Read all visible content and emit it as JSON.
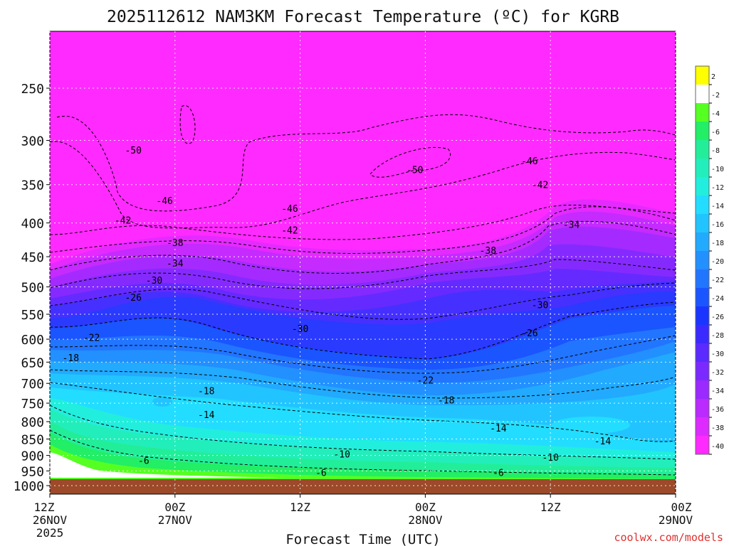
{
  "chart_data": {
    "type": "heatmap",
    "title": "2025112612 NAM3KM Forecast Temperature (ºC) for KGRB",
    "xlabel": "Forecast Time (UTC)",
    "ylabel": "",
    "credit": "coolwx.com/models",
    "y_scale": "log-pressure (inverted)",
    "ylim": [
      1030,
      205
    ],
    "y_ticks": [
      250,
      300,
      350,
      400,
      450,
      500,
      550,
      600,
      650,
      700,
      750,
      800,
      850,
      900,
      950,
      1000
    ],
    "x_hours": [
      0,
      12,
      24,
      36,
      48,
      60
    ],
    "x_ticks": [
      {
        "hour": 0,
        "line1": "12Z",
        "line2": "26NOV",
        "line3": "2025"
      },
      {
        "hour": 12,
        "line1": "00Z",
        "line2": "27NOV",
        "line3": ""
      },
      {
        "hour": 24,
        "line1": "12Z",
        "line2": "",
        "line3": ""
      },
      {
        "hour": 36,
        "line1": "00Z",
        "line2": "28NOV",
        "line3": ""
      },
      {
        "hour": 48,
        "line1": "12Z",
        "line2": "",
        "line3": ""
      },
      {
        "hour": 60,
        "line1": "00Z",
        "line2": "29NOV",
        "line3": ""
      }
    ],
    "colorbar": {
      "labels": [
        "2",
        "-2",
        "-4",
        "-6",
        "-8",
        "-10",
        "-12",
        "-14",
        "-16",
        "-18",
        "-20",
        "-22",
        "-24",
        "-26",
        "-28",
        "-30",
        "-32",
        "-34",
        "-36",
        "-38",
        "-40"
      ],
      "colors": [
        "#ffff00",
        "#ffffff",
        "#55ff22",
        "#22ee66",
        "#22ee99",
        "#22eebb",
        "#22eedd",
        "#22ddff",
        "#22c4ff",
        "#22aaff",
        "#2290ff",
        "#2275ff",
        "#1a55ff",
        "#1a35ff",
        "#3a2aff",
        "#5a2aff",
        "#7a2aff",
        "#9a2aff",
        "#bb2aff",
        "#dd2aff",
        "#ff2aff"
      ]
    },
    "isotherm_labels": [
      {
        "text": "-50",
        "hour": 8,
        "p": 310
      },
      {
        "text": "-46",
        "hour": 11,
        "p": 370
      },
      {
        "text": "-42",
        "hour": 7,
        "p": 396
      },
      {
        "text": "-38",
        "hour": 12,
        "p": 428
      },
      {
        "text": "-34",
        "hour": 12,
        "p": 460
      },
      {
        "text": "-30",
        "hour": 10,
        "p": 488
      },
      {
        "text": "-26",
        "hour": 8,
        "p": 518
      },
      {
        "text": "-22",
        "hour": 4,
        "p": 596
      },
      {
        "text": "-18",
        "hour": 2,
        "p": 640
      },
      {
        "text": "-18",
        "hour": 15,
        "p": 718
      },
      {
        "text": "-14",
        "hour": 15,
        "p": 780
      },
      {
        "text": "-6",
        "hour": 9,
        "p": 915
      },
      {
        "text": "-46",
        "hour": 23,
        "p": 380
      },
      {
        "text": "-42",
        "hour": 23,
        "p": 410
      },
      {
        "text": "-50",
        "hour": 35,
        "p": 332
      },
      {
        "text": "-30",
        "hour": 24,
        "p": 578
      },
      {
        "text": "-22",
        "hour": 36,
        "p": 692
      },
      {
        "text": "-18",
        "hour": 38,
        "p": 742
      },
      {
        "text": "-10",
        "hour": 28,
        "p": 895
      },
      {
        "text": "-6",
        "hour": 26,
        "p": 955
      },
      {
        "text": "-46",
        "hour": 46,
        "p": 322
      },
      {
        "text": "-42",
        "hour": 47,
        "p": 350
      },
      {
        "text": "-38",
        "hour": 42,
        "p": 440
      },
      {
        "text": "-34",
        "hour": 50,
        "p": 402
      },
      {
        "text": "-30",
        "hour": 47,
        "p": 532
      },
      {
        "text": "-26",
        "hour": 46,
        "p": 587
      },
      {
        "text": "-14",
        "hour": 43,
        "p": 818
      },
      {
        "text": "-14",
        "hour": 53,
        "p": 855
      },
      {
        "text": "-10",
        "hour": 48,
        "p": 905
      },
      {
        "text": "-6",
        "hour": 43,
        "p": 955
      }
    ]
  }
}
